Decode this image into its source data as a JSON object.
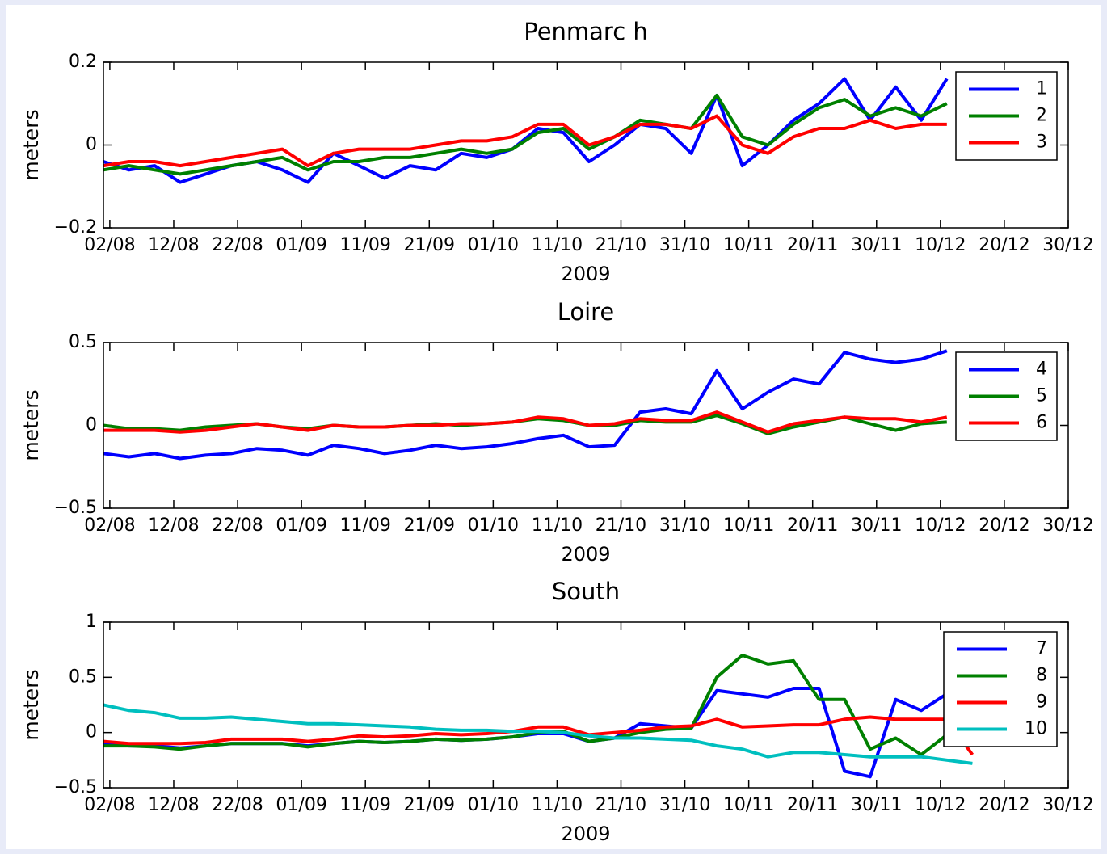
{
  "chart_data": [
    {
      "type": "line",
      "title": "Penmarc h",
      "ylabel": "meters",
      "xlabel": "2009",
      "legend": "upper right",
      "xlim": [
        "2009-08-01",
        "2009-12-30"
      ],
      "ylim": [
        -0.2,
        0.2
      ],
      "yticks": [
        {
          "value": -0.2,
          "label": "−0.2"
        },
        0,
        0.2
      ],
      "xticks": [
        {
          "value": "2009-08-02",
          "label": "02/08"
        },
        {
          "value": "2009-08-12",
          "label": "12/08"
        },
        {
          "value": "2009-08-22",
          "label": "22/08"
        },
        {
          "value": "2009-09-01",
          "label": "01/09"
        },
        {
          "value": "2009-09-11",
          "label": "11/09"
        },
        {
          "value": "2009-09-21",
          "label": "21/09"
        },
        {
          "value": "2009-10-01",
          "label": "01/10"
        },
        {
          "value": "2009-10-11",
          "label": "11/10"
        },
        {
          "value": "2009-10-21",
          "label": "21/10"
        },
        {
          "value": "2009-10-31",
          "label": "31/10"
        },
        {
          "value": "2009-11-10",
          "label": "10/11"
        },
        {
          "value": "2009-11-20",
          "label": "20/11"
        },
        {
          "value": "2009-11-30",
          "label": "30/11"
        },
        {
          "value": "2009-12-10",
          "label": "10/12"
        },
        {
          "value": "2009-12-20",
          "label": "20/12"
        },
        {
          "value": "2009-12-30",
          "label": "30/12"
        }
      ],
      "x": [
        "2009-08-01",
        "2009-08-05",
        "2009-08-09",
        "2009-08-13",
        "2009-08-17",
        "2009-08-21",
        "2009-08-25",
        "2009-08-29",
        "2009-09-02",
        "2009-09-06",
        "2009-09-10",
        "2009-09-14",
        "2009-09-18",
        "2009-09-22",
        "2009-09-26",
        "2009-09-30",
        "2009-10-04",
        "2009-10-08",
        "2009-10-12",
        "2009-10-16",
        "2009-10-20",
        "2009-10-24",
        "2009-10-28",
        "2009-11-01",
        "2009-11-05",
        "2009-11-09",
        "2009-11-13",
        "2009-11-17",
        "2009-11-21",
        "2009-11-25",
        "2009-11-29",
        "2009-12-03",
        "2009-12-07",
        "2009-12-11",
        "2009-12-15"
      ],
      "series": [
        {
          "name": "1",
          "color": "#0000ff",
          "values": [
            -0.04,
            -0.06,
            -0.05,
            -0.09,
            -0.07,
            -0.05,
            -0.04,
            -0.06,
            -0.09,
            -0.02,
            -0.05,
            -0.08,
            -0.05,
            -0.06,
            -0.02,
            -0.03,
            -0.01,
            0.04,
            0.03,
            -0.04,
            0.0,
            0.05,
            0.04,
            -0.02,
            0.12,
            -0.05,
            0.0,
            0.06,
            0.1,
            0.16,
            0.06,
            0.14,
            0.06,
            0.16,
            null
          ]
        },
        {
          "name": "2",
          "color": "#008000",
          "values": [
            -0.06,
            -0.05,
            -0.06,
            -0.07,
            -0.06,
            -0.05,
            -0.04,
            -0.03,
            -0.06,
            -0.04,
            -0.04,
            -0.03,
            -0.03,
            -0.02,
            -0.01,
            -0.02,
            -0.01,
            0.03,
            0.04,
            -0.01,
            0.02,
            0.06,
            0.05,
            0.04,
            0.12,
            0.02,
            0.0,
            0.05,
            0.09,
            0.11,
            0.07,
            0.09,
            0.07,
            0.1,
            null
          ]
        },
        {
          "name": "3",
          "color": "#ff0000",
          "values": [
            -0.05,
            -0.04,
            -0.04,
            -0.05,
            -0.04,
            -0.03,
            -0.02,
            -0.01,
            -0.05,
            -0.02,
            -0.01,
            -0.01,
            -0.01,
            0.0,
            0.01,
            0.01,
            0.02,
            0.05,
            0.05,
            0.0,
            0.02,
            0.05,
            0.05,
            0.04,
            0.07,
            0.0,
            -0.02,
            0.02,
            0.04,
            0.04,
            0.06,
            0.04,
            0.05,
            0.05,
            null
          ]
        }
      ]
    },
    {
      "type": "line",
      "title": "Loire",
      "ylabel": "meters",
      "xlabel": "2009",
      "legend": "upper right",
      "xlim": [
        "2009-08-01",
        "2009-12-30"
      ],
      "ylim": [
        -0.5,
        0.5
      ],
      "yticks": [
        {
          "value": -0.5,
          "label": "−0.5"
        },
        0,
        0.5
      ],
      "xticks": [
        {
          "value": "2009-08-02",
          "label": "02/08"
        },
        {
          "value": "2009-08-12",
          "label": "12/08"
        },
        {
          "value": "2009-08-22",
          "label": "22/08"
        },
        {
          "value": "2009-09-01",
          "label": "01/09"
        },
        {
          "value": "2009-09-11",
          "label": "11/09"
        },
        {
          "value": "2009-09-21",
          "label": "21/09"
        },
        {
          "value": "2009-10-01",
          "label": "01/10"
        },
        {
          "value": "2009-10-11",
          "label": "11/10"
        },
        {
          "value": "2009-10-21",
          "label": "21/10"
        },
        {
          "value": "2009-10-31",
          "label": "31/10"
        },
        {
          "value": "2009-11-10",
          "label": "10/11"
        },
        {
          "value": "2009-11-20",
          "label": "20/11"
        },
        {
          "value": "2009-11-30",
          "label": "30/11"
        },
        {
          "value": "2009-12-10",
          "label": "10/12"
        },
        {
          "value": "2009-12-20",
          "label": "20/12"
        },
        {
          "value": "2009-12-30",
          "label": "30/12"
        }
      ],
      "x": [
        "2009-08-01",
        "2009-08-05",
        "2009-08-09",
        "2009-08-13",
        "2009-08-17",
        "2009-08-21",
        "2009-08-25",
        "2009-08-29",
        "2009-09-02",
        "2009-09-06",
        "2009-09-10",
        "2009-09-14",
        "2009-09-18",
        "2009-09-22",
        "2009-09-26",
        "2009-09-30",
        "2009-10-04",
        "2009-10-08",
        "2009-10-12",
        "2009-10-16",
        "2009-10-20",
        "2009-10-24",
        "2009-10-28",
        "2009-11-01",
        "2009-11-05",
        "2009-11-09",
        "2009-11-13",
        "2009-11-17",
        "2009-11-21",
        "2009-11-25",
        "2009-11-29",
        "2009-12-03",
        "2009-12-07",
        "2009-12-11",
        "2009-12-15"
      ],
      "series": [
        {
          "name": "4",
          "color": "#0000ff",
          "values": [
            -0.17,
            -0.19,
            -0.17,
            -0.2,
            -0.18,
            -0.17,
            -0.14,
            -0.15,
            -0.18,
            -0.12,
            -0.14,
            -0.17,
            -0.15,
            -0.12,
            -0.14,
            -0.13,
            -0.11,
            -0.08,
            -0.06,
            -0.13,
            -0.12,
            0.08,
            0.1,
            0.07,
            0.33,
            0.1,
            0.2,
            0.28,
            0.25,
            0.44,
            0.4,
            0.38,
            0.4,
            0.45,
            null
          ]
        },
        {
          "name": "5",
          "color": "#008000",
          "values": [
            0.0,
            -0.02,
            -0.02,
            -0.03,
            -0.01,
            0.0,
            0.01,
            -0.01,
            -0.02,
            0.0,
            -0.01,
            -0.01,
            0.0,
            0.01,
            0.0,
            0.01,
            0.02,
            0.04,
            0.03,
            0.0,
            0.0,
            0.03,
            0.02,
            0.02,
            0.06,
            0.01,
            -0.05,
            -0.01,
            0.02,
            0.05,
            0.01,
            -0.03,
            0.01,
            0.02,
            null
          ]
        },
        {
          "name": "6",
          "color": "#ff0000",
          "values": [
            -0.03,
            -0.03,
            -0.03,
            -0.04,
            -0.03,
            -0.01,
            0.01,
            -0.01,
            -0.03,
            0.0,
            -0.01,
            -0.01,
            0.0,
            0.0,
            0.01,
            0.01,
            0.02,
            0.05,
            0.04,
            0.0,
            0.01,
            0.04,
            0.03,
            0.03,
            0.08,
            0.02,
            -0.04,
            0.01,
            0.03,
            0.05,
            0.04,
            0.04,
            0.02,
            0.05,
            null
          ]
        }
      ]
    },
    {
      "type": "line",
      "title": "South",
      "ylabel": "meters",
      "xlabel": "2009",
      "legend": "upper right",
      "xlim": [
        "2009-08-01",
        "2009-12-30"
      ],
      "ylim": [
        -0.5,
        1
      ],
      "yticks": [
        {
          "value": -0.5,
          "label": "−0.5"
        },
        0,
        0.5,
        1
      ],
      "xticks": [
        {
          "value": "2009-08-02",
          "label": "02/08"
        },
        {
          "value": "2009-08-12",
          "label": "12/08"
        },
        {
          "value": "2009-08-22",
          "label": "22/08"
        },
        {
          "value": "2009-09-01",
          "label": "01/09"
        },
        {
          "value": "2009-09-11",
          "label": "11/09"
        },
        {
          "value": "2009-09-21",
          "label": "21/09"
        },
        {
          "value": "2009-10-01",
          "label": "01/10"
        },
        {
          "value": "2009-10-11",
          "label": "11/10"
        },
        {
          "value": "2009-10-21",
          "label": "21/10"
        },
        {
          "value": "2009-10-31",
          "label": "31/10"
        },
        {
          "value": "2009-11-10",
          "label": "10/11"
        },
        {
          "value": "2009-11-20",
          "label": "20/11"
        },
        {
          "value": "2009-11-30",
          "label": "30/11"
        },
        {
          "value": "2009-12-10",
          "label": "10/12"
        },
        {
          "value": "2009-12-20",
          "label": "20/12"
        },
        {
          "value": "2009-12-30",
          "label": "30/12"
        }
      ],
      "x": [
        "2009-08-01",
        "2009-08-05",
        "2009-08-09",
        "2009-08-13",
        "2009-08-17",
        "2009-08-21",
        "2009-08-25",
        "2009-08-29",
        "2009-09-02",
        "2009-09-06",
        "2009-09-10",
        "2009-09-14",
        "2009-09-18",
        "2009-09-22",
        "2009-09-26",
        "2009-09-30",
        "2009-10-04",
        "2009-10-08",
        "2009-10-12",
        "2009-10-16",
        "2009-10-20",
        "2009-10-24",
        "2009-10-28",
        "2009-11-01",
        "2009-11-05",
        "2009-11-09",
        "2009-11-13",
        "2009-11-17",
        "2009-11-21",
        "2009-11-25",
        "2009-11-29",
        "2009-12-03",
        "2009-12-07",
        "2009-12-11",
        "2009-12-15"
      ],
      "series": [
        {
          "name": "7",
          "color": "#0000ff",
          "values": [
            -0.1,
            -0.12,
            -0.12,
            -0.14,
            -0.12,
            -0.1,
            -0.1,
            -0.1,
            -0.12,
            -0.1,
            -0.08,
            -0.09,
            -0.08,
            -0.06,
            -0.07,
            -0.06,
            -0.04,
            -0.01,
            -0.01,
            -0.08,
            -0.05,
            0.08,
            0.06,
            0.04,
            0.38,
            0.35,
            0.32,
            0.4,
            0.4,
            -0.35,
            -0.4,
            0.3,
            0.2,
            0.35,
            null
          ]
        },
        {
          "name": "8",
          "color": "#008000",
          "values": [
            -0.12,
            -0.12,
            -0.13,
            -0.15,
            -0.12,
            -0.1,
            -0.1,
            -0.1,
            -0.13,
            -0.1,
            -0.08,
            -0.09,
            -0.08,
            -0.06,
            -0.07,
            -0.06,
            -0.04,
            0.0,
            0.01,
            -0.08,
            -0.05,
            0.0,
            0.03,
            0.04,
            0.5,
            0.7,
            0.62,
            0.65,
            0.3,
            0.3,
            -0.15,
            -0.05,
            -0.2,
            -0.02,
            null
          ]
        },
        {
          "name": "9",
          "color": "#ff0000",
          "values": [
            -0.08,
            -0.1,
            -0.1,
            -0.1,
            -0.09,
            -0.06,
            -0.06,
            -0.06,
            -0.08,
            -0.06,
            -0.03,
            -0.04,
            -0.03,
            -0.01,
            -0.02,
            -0.01,
            0.01,
            0.05,
            0.05,
            -0.02,
            0.0,
            0.02,
            0.05,
            0.06,
            0.12,
            0.05,
            0.06,
            0.07,
            0.07,
            0.12,
            0.14,
            0.12,
            0.12,
            0.12,
            -0.2
          ]
        },
        {
          "name": "10",
          "color": "#00bfbf",
          "values": [
            0.25,
            0.2,
            0.18,
            0.13,
            0.13,
            0.14,
            0.12,
            0.1,
            0.08,
            0.08,
            0.07,
            0.06,
            0.05,
            0.03,
            0.02,
            0.02,
            0.01,
            0.01,
            0.0,
            -0.03,
            -0.05,
            -0.05,
            -0.06,
            -0.07,
            -0.12,
            -0.15,
            -0.22,
            -0.18,
            -0.18,
            -0.2,
            -0.22,
            -0.22,
            -0.22,
            -0.25,
            -0.28
          ]
        }
      ]
    }
  ]
}
